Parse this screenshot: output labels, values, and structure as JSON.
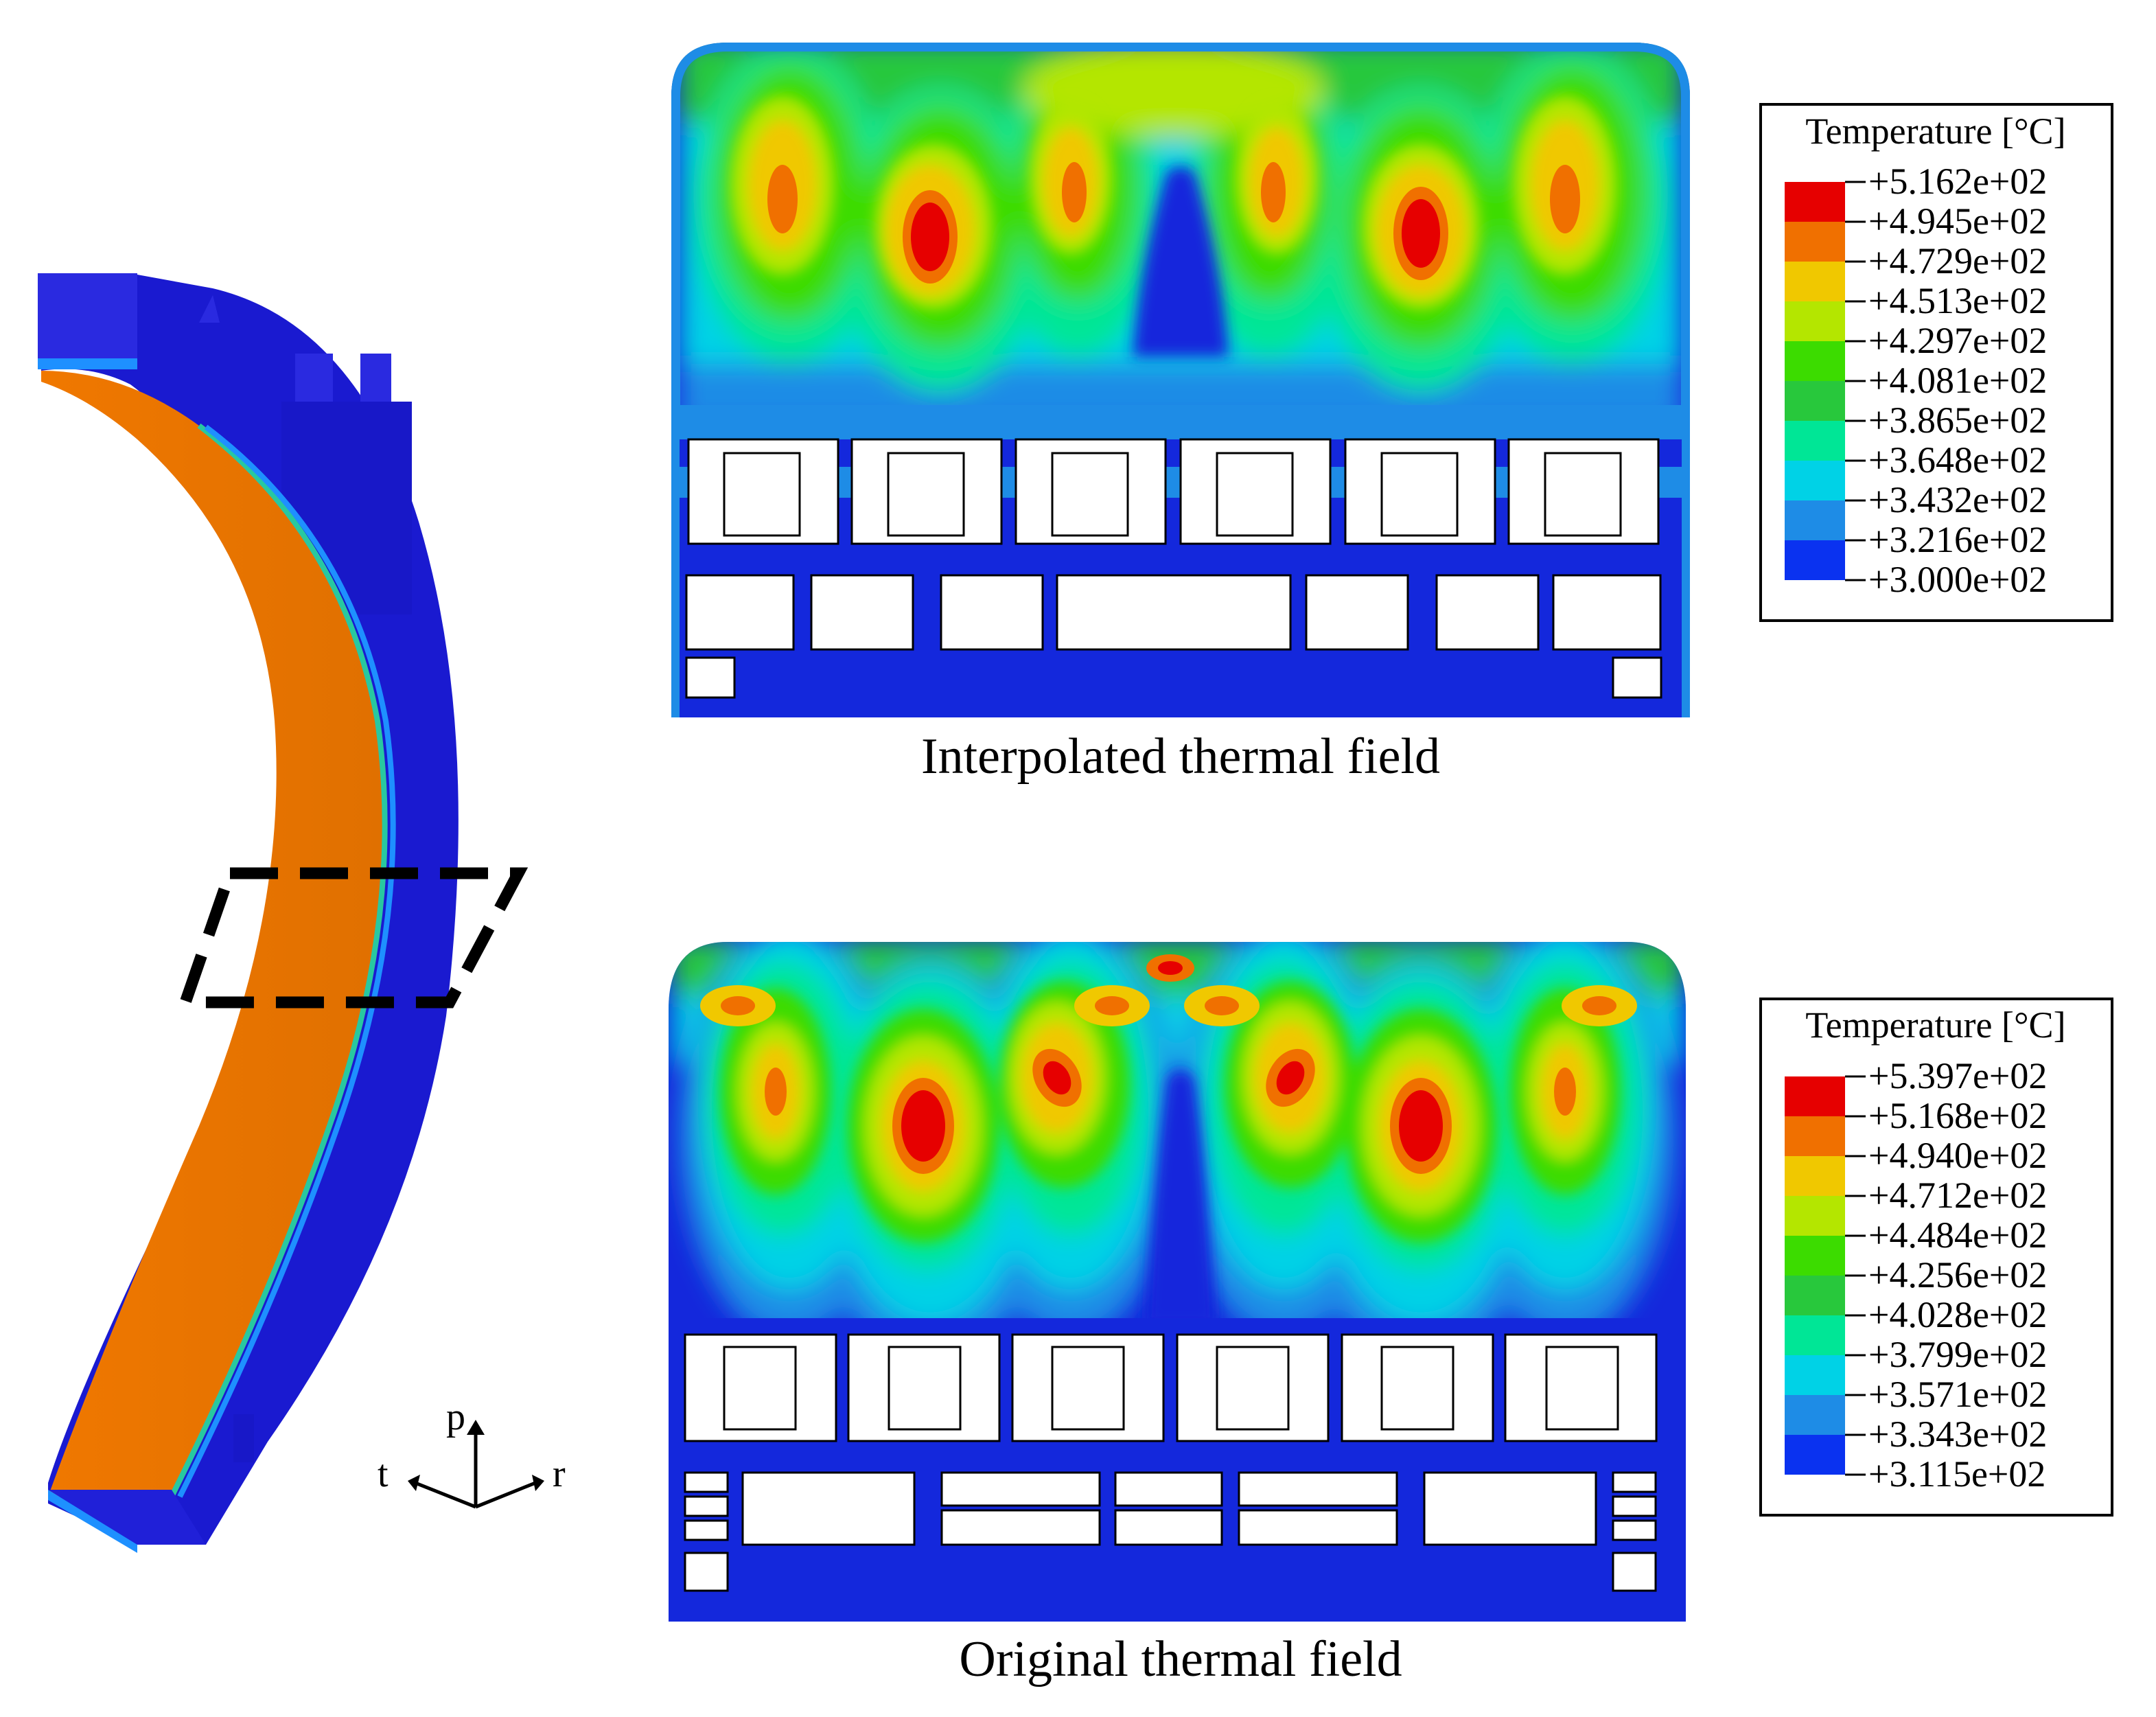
{
  "figure": {
    "captions": {
      "interpolated": "Interpolated thermal field",
      "original": "Original thermal field"
    },
    "axes": {
      "p": "p",
      "t": "t",
      "r": "r"
    }
  },
  "legend_interpolated": {
    "title": "Temperature [°C]",
    "values": [
      "+5.162e+02",
      "+4.945e+02",
      "+4.729e+02",
      "+4.513e+02",
      "+4.297e+02",
      "+4.081e+02",
      "+3.865e+02",
      "+3.648e+02",
      "+3.432e+02",
      "+3.216e+02",
      "+3.000e+02"
    ]
  },
  "legend_original": {
    "title": "Temperature [°C]",
    "values": [
      "+5.397e+02",
      "+5.168e+02",
      "+4.940e+02",
      "+4.712e+02",
      "+4.484e+02",
      "+4.256e+02",
      "+4.028e+02",
      "+3.799e+02",
      "+3.571e+02",
      "+3.343e+02",
      "+3.115e+02"
    ]
  },
  "colors": {
    "bands": [
      "#e60000",
      "#f07000",
      "#f0c800",
      "#b4e600",
      "#3cdc00",
      "#28c83c",
      "#00e696",
      "#00d2e6",
      "#1e8ce6",
      "#0a32f0"
    ],
    "base_blue": "#1428dc",
    "coil_orange": "#f07800",
    "steel_blue": "#1a1ad0"
  }
}
